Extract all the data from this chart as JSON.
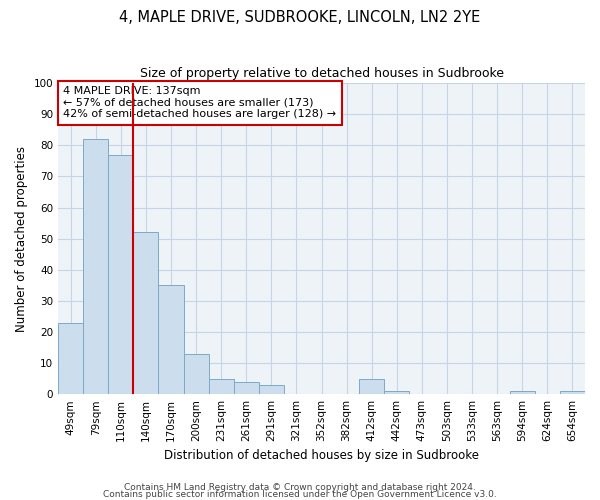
{
  "title": "4, MAPLE DRIVE, SUDBROOKE, LINCOLN, LN2 2YE",
  "subtitle": "Size of property relative to detached houses in Sudbrooke",
  "xlabel": "Distribution of detached houses by size in Sudbrooke",
  "ylabel": "Number of detached properties",
  "bar_labels": [
    "49sqm",
    "79sqm",
    "110sqm",
    "140sqm",
    "170sqm",
    "200sqm",
    "231sqm",
    "261sqm",
    "291sqm",
    "321sqm",
    "352sqm",
    "382sqm",
    "412sqm",
    "442sqm",
    "473sqm",
    "503sqm",
    "533sqm",
    "563sqm",
    "594sqm",
    "624sqm",
    "654sqm"
  ],
  "bar_values": [
    23,
    82,
    77,
    52,
    35,
    13,
    5,
    4,
    3,
    0,
    0,
    0,
    5,
    1,
    0,
    0,
    0,
    0,
    1,
    0,
    1
  ],
  "bar_color": "#ccdded",
  "bar_edge_color": "#7aaac8",
  "vline_color": "#cc0000",
  "annotation_title": "4 MAPLE DRIVE: 137sqm",
  "annotation_line1": "← 57% of detached houses are smaller (173)",
  "annotation_line2": "42% of semi-detached houses are larger (128) →",
  "annotation_box_color": "#cc0000",
  "ylim": [
    0,
    100
  ],
  "yticks": [
    0,
    10,
    20,
    30,
    40,
    50,
    60,
    70,
    80,
    90,
    100
  ],
  "grid_color": "#c5d5e5",
  "background_color": "#eef3f8",
  "footer_line1": "Contains HM Land Registry data © Crown copyright and database right 2024.",
  "footer_line2": "Contains public sector information licensed under the Open Government Licence v3.0.",
  "title_fontsize": 10.5,
  "subtitle_fontsize": 9,
  "axis_label_fontsize": 8.5,
  "tick_fontsize": 7.5,
  "annotation_fontsize": 8,
  "footer_fontsize": 6.5
}
